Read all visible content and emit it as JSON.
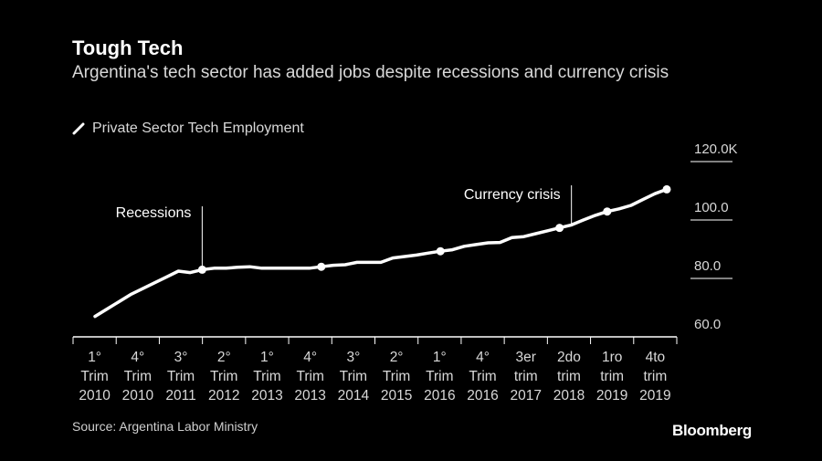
{
  "title": "Tough Tech",
  "subtitle": "Argentina's tech sector has added jobs despite recessions and currency crisis",
  "source": "Source: Argentina Labor Ministry",
  "brand": "Bloomberg",
  "colors": {
    "background": "#000000",
    "line": "#ffffff",
    "axis": "#ffffff",
    "text": "#d8d8d8"
  },
  "chart_data": {
    "type": "line",
    "legend": {
      "position": "top-left",
      "entries": [
        "Private Sector Tech Employment"
      ]
    },
    "y_axis": {
      "side": "right",
      "ylim": [
        60,
        120
      ],
      "ticks": [
        60,
        80,
        100,
        120
      ],
      "tick_labels": [
        "60.0",
        "80.0",
        "100.0",
        "120.0K"
      ]
    },
    "grid": false,
    "x_tick_labels": [
      [
        "1°",
        "Trim",
        "2010"
      ],
      [
        "4°",
        "Trim",
        "2010"
      ],
      [
        "3°",
        "Trim",
        "2011"
      ],
      [
        "2°",
        "Trim",
        "2012"
      ],
      [
        "1°",
        "Trim",
        "2013"
      ],
      [
        "4°",
        "Trim",
        "2013"
      ],
      [
        "3°",
        "Trim",
        "2014"
      ],
      [
        "2°",
        "Trim",
        "2015"
      ],
      [
        "1°",
        "Trim",
        "2016"
      ],
      [
        "4°",
        "Trim",
        "2016"
      ],
      [
        "3er",
        "trim",
        "2017"
      ],
      [
        "2do",
        "trim",
        "2018"
      ],
      [
        "1ro",
        "trim",
        "2019"
      ],
      [
        "4to",
        "trim",
        "2019"
      ]
    ],
    "series": [
      {
        "name": "Private Sector Tech Employment",
        "values": [
          67,
          69.5,
          72,
          74.5,
          76.5,
          78.5,
          80.5,
          82.5,
          82,
          83,
          83.5,
          83.5,
          83.8,
          84,
          83.5,
          83.5,
          83.5,
          83.5,
          83.5,
          84,
          84.5,
          84.7,
          85.5,
          85.5,
          85.5,
          87,
          87.5,
          88,
          88.7,
          89.3,
          89.8,
          91,
          91.6,
          92.2,
          92.3,
          94,
          94.3,
          95.3,
          96.3,
          97.3,
          98.3,
          100,
          101.6,
          102.9,
          103.8,
          105,
          107,
          109,
          110.5
        ]
      }
    ],
    "markers": [
      {
        "index": 9,
        "value": 83
      },
      {
        "index": 19,
        "value": 84
      },
      {
        "index": 29,
        "value": 89.3
      },
      {
        "index": 39,
        "value": 97.3
      },
      {
        "index": 43,
        "value": 102.9
      },
      {
        "index": 48,
        "value": 110.5
      }
    ],
    "annotations": [
      {
        "text": "Recessions",
        "index": 9
      },
      {
        "text": "Currency crisis",
        "index": 40
      }
    ]
  }
}
